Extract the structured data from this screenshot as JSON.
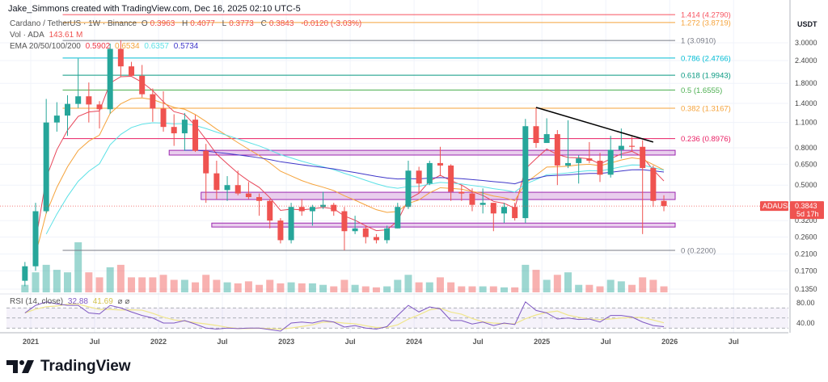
{
  "credit": "Jake_Simmons created with TradingView.com, Dec 16, 2025 02:10 UTC-5",
  "legend": {
    "symbol": "Cardano / TetherUS · 1W · Binance",
    "o_label": "O",
    "o": "0.3963",
    "h_label": "H",
    "h": "0.4077",
    "l_label": "L",
    "l": "0.3773",
    "c_label": "C",
    "c": "0.3843",
    "change": "-0.0120 (-3.03%)",
    "vol_label": "Vol · ADA",
    "vol": "143.61 M",
    "ema_label": "EMA 20/50/100/200",
    "ema20": "0.5902",
    "ema50": "0.6534",
    "ema100": "0.6357",
    "ema200": "0.5734",
    "rsi_label": "RSI (14, close)",
    "rsi": "32.88",
    "rsi_ma": "41.69"
  },
  "price_axis": {
    "currency": "USDT",
    "ticks": [
      "3.0000",
      "2.4000",
      "1.8000",
      "1.4000",
      "1.1000",
      "0.8000",
      "0.6500",
      "0.5000",
      "0.3200",
      "0.2600",
      "0.2100",
      "0.1700",
      "0.1350"
    ],
    "rsi_ticks": [
      "80.00",
      "40.00"
    ],
    "last_symbol": "ADAUSDT",
    "last_price": "0.3843",
    "countdown": "5d 17h"
  },
  "time_axis": [
    {
      "label": "2021",
      "date": "2021-01"
    },
    {
      "label": "Jul",
      "date": "2021-07"
    },
    {
      "label": "2022",
      "date": "2022-01"
    },
    {
      "label": "Jul",
      "date": "2022-07"
    },
    {
      "label": "2023",
      "date": "2023-01"
    },
    {
      "label": "Jul",
      "date": "2023-07"
    },
    {
      "label": "2024",
      "date": "2024-01"
    },
    {
      "label": "Jul",
      "date": "2024-07"
    },
    {
      "label": "2025",
      "date": "2025-01"
    },
    {
      "label": "Jul",
      "date": "2025-07"
    },
    {
      "label": "2026",
      "date": "2026-01"
    },
    {
      "label": "Jul",
      "date": "2026-07"
    }
  ],
  "colors": {
    "up": "#26a69a",
    "down": "#ef5350",
    "ema20": "#e8475a",
    "ema50": "#f5a33b",
    "ema100": "#5ce1e6",
    "ema200": "#3f37c9",
    "rsi": "#7e57c2",
    "rsi_ma": "#f0e68c",
    "zone": "#ce93d8",
    "trendline": "#000000"
  },
  "chart_data": {
    "type": "candlestick",
    "title": "Cardano / TetherUS · 1W · Binance",
    "scale": "log",
    "ylim": [
      0.13,
      4.3
    ],
    "grid": true,
    "dates": [
      "2020-12",
      "2021-01",
      "2021-02",
      "2021-03",
      "2021-04",
      "2021-05",
      "2021-06",
      "2021-07",
      "2021-08",
      "2021-09",
      "2021-10",
      "2021-11",
      "2021-12",
      "2022-01",
      "2022-02",
      "2022-03",
      "2022-04",
      "2022-05",
      "2022-06",
      "2022-07",
      "2022-08",
      "2022-09",
      "2022-10",
      "2022-11",
      "2022-12",
      "2023-01",
      "2023-02",
      "2023-03",
      "2023-04",
      "2023-05",
      "2023-06",
      "2023-07",
      "2023-08",
      "2023-09",
      "2023-10",
      "2023-11",
      "2023-12",
      "2024-01",
      "2024-02",
      "2024-03",
      "2024-04",
      "2024-05",
      "2024-06",
      "2024-07",
      "2024-08",
      "2024-09",
      "2024-10",
      "2024-11",
      "2024-12",
      "2025-01",
      "2025-02",
      "2025-03",
      "2025-04",
      "2025-05",
      "2025-06",
      "2025-07",
      "2025-08",
      "2025-09",
      "2025-10",
      "2025-11",
      "2025-12"
    ],
    "open": [
      0.15,
      0.18,
      0.36,
      1.1,
      1.2,
      1.39,
      1.53,
      1.38,
      1.3,
      2.78,
      2.23,
      1.98,
      1.57,
      1.31,
      1.04,
      0.96,
      1.14,
      0.77,
      0.58,
      0.47,
      0.5,
      0.45,
      0.43,
      0.41,
      0.32,
      0.25,
      0.38,
      0.36,
      0.38,
      0.39,
      0.36,
      0.28,
      0.29,
      0.26,
      0.25,
      0.29,
      0.38,
      0.6,
      0.51,
      0.66,
      0.64,
      0.46,
      0.45,
      0.39,
      0.4,
      0.35,
      0.38,
      0.33,
      1.05,
      0.85,
      0.95,
      0.64,
      0.66,
      0.7,
      0.68,
      0.57,
      0.78,
      0.82,
      0.81,
      0.62,
      0.41
    ],
    "high": [
      0.19,
      0.4,
      1.48,
      1.42,
      1.55,
      2.46,
      1.82,
      1.44,
      2.97,
      3.1,
      2.36,
      2.27,
      1.69,
      1.63,
      1.22,
      1.24,
      1.21,
      0.84,
      0.68,
      0.56,
      0.6,
      0.52,
      0.45,
      0.42,
      0.33,
      0.4,
      0.42,
      0.39,
      0.46,
      0.4,
      0.38,
      0.34,
      0.3,
      0.27,
      0.3,
      0.4,
      0.68,
      0.63,
      0.68,
      0.81,
      0.65,
      0.5,
      0.48,
      0.48,
      0.4,
      0.4,
      0.4,
      1.15,
      1.33,
      1.16,
      1.0,
      1.13,
      0.73,
      0.86,
      0.75,
      0.93,
      1.02,
      0.92,
      0.88,
      0.64,
      0.44
    ],
    "low": [
      0.14,
      0.17,
      0.35,
      0.98,
      0.93,
      1.32,
      1.1,
      1.02,
      1.23,
      1.95,
      1.98,
      1.51,
      1.11,
      0.98,
      0.82,
      0.77,
      0.76,
      0.4,
      0.42,
      0.41,
      0.44,
      0.42,
      0.34,
      0.29,
      0.24,
      0.24,
      0.34,
      0.3,
      0.37,
      0.34,
      0.22,
      0.27,
      0.24,
      0.24,
      0.24,
      0.29,
      0.37,
      0.45,
      0.5,
      0.56,
      0.41,
      0.41,
      0.36,
      0.35,
      0.28,
      0.31,
      0.32,
      0.31,
      0.8,
      0.85,
      0.5,
      0.62,
      0.51,
      0.66,
      0.52,
      0.55,
      0.7,
      0.76,
      0.27,
      0.38,
      0.36
    ],
    "close": [
      0.18,
      0.36,
      1.1,
      1.2,
      1.39,
      1.53,
      1.38,
      1.3,
      2.78,
      2.23,
      1.98,
      1.57,
      1.31,
      1.04,
      0.96,
      1.14,
      0.77,
      0.58,
      0.47,
      0.5,
      0.45,
      0.43,
      0.41,
      0.32,
      0.25,
      0.38,
      0.36,
      0.38,
      0.39,
      0.36,
      0.28,
      0.29,
      0.26,
      0.25,
      0.29,
      0.38,
      0.6,
      0.51,
      0.66,
      0.64,
      0.46,
      0.45,
      0.39,
      0.4,
      0.35,
      0.38,
      0.33,
      1.05,
      0.85,
      0.95,
      0.64,
      0.66,
      0.7,
      0.68,
      0.57,
      0.78,
      0.82,
      0.81,
      0.62,
      0.41,
      0.3843
    ],
    "volume_relative": [
      15,
      40,
      55,
      45,
      40,
      100,
      40,
      30,
      50,
      55,
      30,
      30,
      30,
      35,
      25,
      25,
      20,
      35,
      25,
      20,
      18,
      22,
      15,
      25,
      18,
      20,
      18,
      18,
      15,
      12,
      25,
      15,
      12,
      10,
      12,
      25,
      35,
      20,
      20,
      30,
      20,
      12,
      12,
      12,
      12,
      10,
      10,
      55,
      45,
      25,
      35,
      40,
      15,
      15,
      12,
      25,
      22,
      15,
      30,
      25,
      12
    ],
    "rsi": [
      60,
      75,
      82,
      78,
      75,
      75,
      60,
      58,
      75,
      70,
      62,
      55,
      50,
      40,
      40,
      45,
      38,
      30,
      28,
      30,
      29,
      30,
      30,
      27,
      24,
      40,
      42,
      40,
      45,
      42,
      32,
      35,
      30,
      28,
      33,
      55,
      75,
      62,
      72,
      68,
      45,
      45,
      38,
      42,
      35,
      40,
      37,
      82,
      65,
      60,
      48,
      50,
      47,
      48,
      42,
      55,
      55,
      52,
      42,
      35,
      32.88
    ],
    "rsi_levels": [
      70,
      50,
      30
    ],
    "fib_levels": [
      {
        "level": "1.414",
        "price": "4.2790",
        "value": 4.279,
        "color": "#f7525f"
      },
      {
        "level": "1.272",
        "price": "3.8719",
        "value": 3.8719,
        "color": "#f5a33b"
      },
      {
        "level": "1",
        "price": "3.0910",
        "value": 3.091,
        "color": "#787b86"
      },
      {
        "level": "0.786",
        "price": "2.4766",
        "value": 2.4766,
        "color": "#00bcd4"
      },
      {
        "level": "0.618",
        "price": "1.9943",
        "value": 1.9943,
        "color": "#089981"
      },
      {
        "level": "0.5",
        "price": "1.6555",
        "value": 1.6555,
        "color": "#4caf50"
      },
      {
        "level": "0.382",
        "price": "1.3167",
        "value": 1.3167,
        "color": "#f5a33b"
      },
      {
        "level": "0.236",
        "price": "0.8976",
        "value": 0.8976,
        "color": "#e91e63"
      },
      {
        "level": "0",
        "price": "0.2200",
        "value": 0.22,
        "color": "#787b86"
      }
    ],
    "fib_start": "2021-04",
    "zones": [
      {
        "from": "2022-02",
        "low": 0.73,
        "high": 0.775
      },
      {
        "from": "2022-05",
        "low": 0.417,
        "high": 0.457
      },
      {
        "from": "2022-06",
        "low": 0.295,
        "high": 0.31
      }
    ],
    "trendline": [
      {
        "date": "2024-12",
        "price": 1.33
      },
      {
        "date": "2025-11",
        "price": 0.86
      }
    ]
  },
  "branding": {
    "name": "TradingView"
  }
}
